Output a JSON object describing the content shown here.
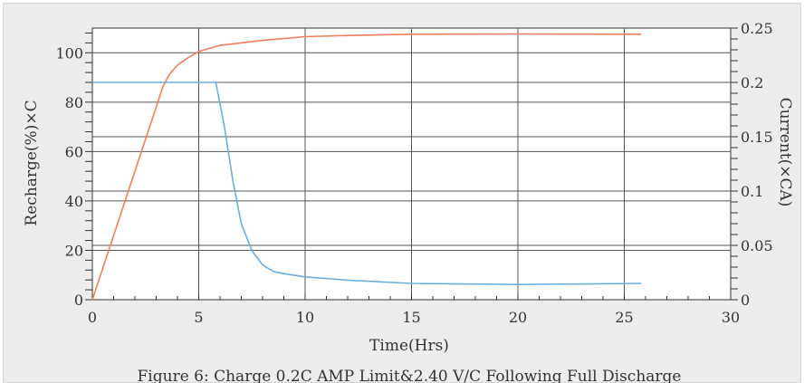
{
  "chart_data": {
    "type": "line",
    "caption": "Figure 6: Charge 0.2C AMP Limit&2.40 V/C Following Full Discharge",
    "xlabel": "Time(Hrs)",
    "ylabel_left": "Recharge(%)×C",
    "ylabel_right": "Current(×CA)",
    "xlim": [
      0,
      30
    ],
    "ylim_left": [
      0,
      110
    ],
    "ylim_right": [
      0,
      0.25
    ],
    "x_ticks": [
      "0",
      "5",
      "10",
      "15",
      "20",
      "25",
      "30"
    ],
    "y_left_ticks": [
      "0",
      "20",
      "40",
      "60",
      "80",
      "100"
    ],
    "y_right_ticks": [
      "0",
      "0.05",
      "0.1",
      "0.15",
      "0.2",
      "0.25"
    ],
    "grid": true,
    "series": [
      {
        "axis": "left",
        "color": "#f07d5c",
        "x": [
          0,
          1,
          2,
          3,
          3.3,
          3.6,
          4,
          4.5,
          5,
          6,
          8,
          10,
          12,
          15,
          20,
          25.8
        ],
        "y": [
          0,
          26,
          52,
          78,
          86,
          91,
          95,
          98,
          100.5,
          103,
          105,
          106.5,
          107,
          107.5,
          107.6,
          107.5
        ]
      },
      {
        "axis": "right",
        "color": "#6aaee0",
        "x": [
          0,
          5.8,
          6.2,
          6.6,
          7,
          7.5,
          8,
          8.5,
          9,
          10,
          12,
          15,
          20,
          25.8
        ],
        "y": [
          0.2,
          0.2,
          0.16,
          0.11,
          0.07,
          0.045,
          0.032,
          0.026,
          0.024,
          0.021,
          0.018,
          0.015,
          0.014,
          0.015
        ]
      }
    ]
  }
}
